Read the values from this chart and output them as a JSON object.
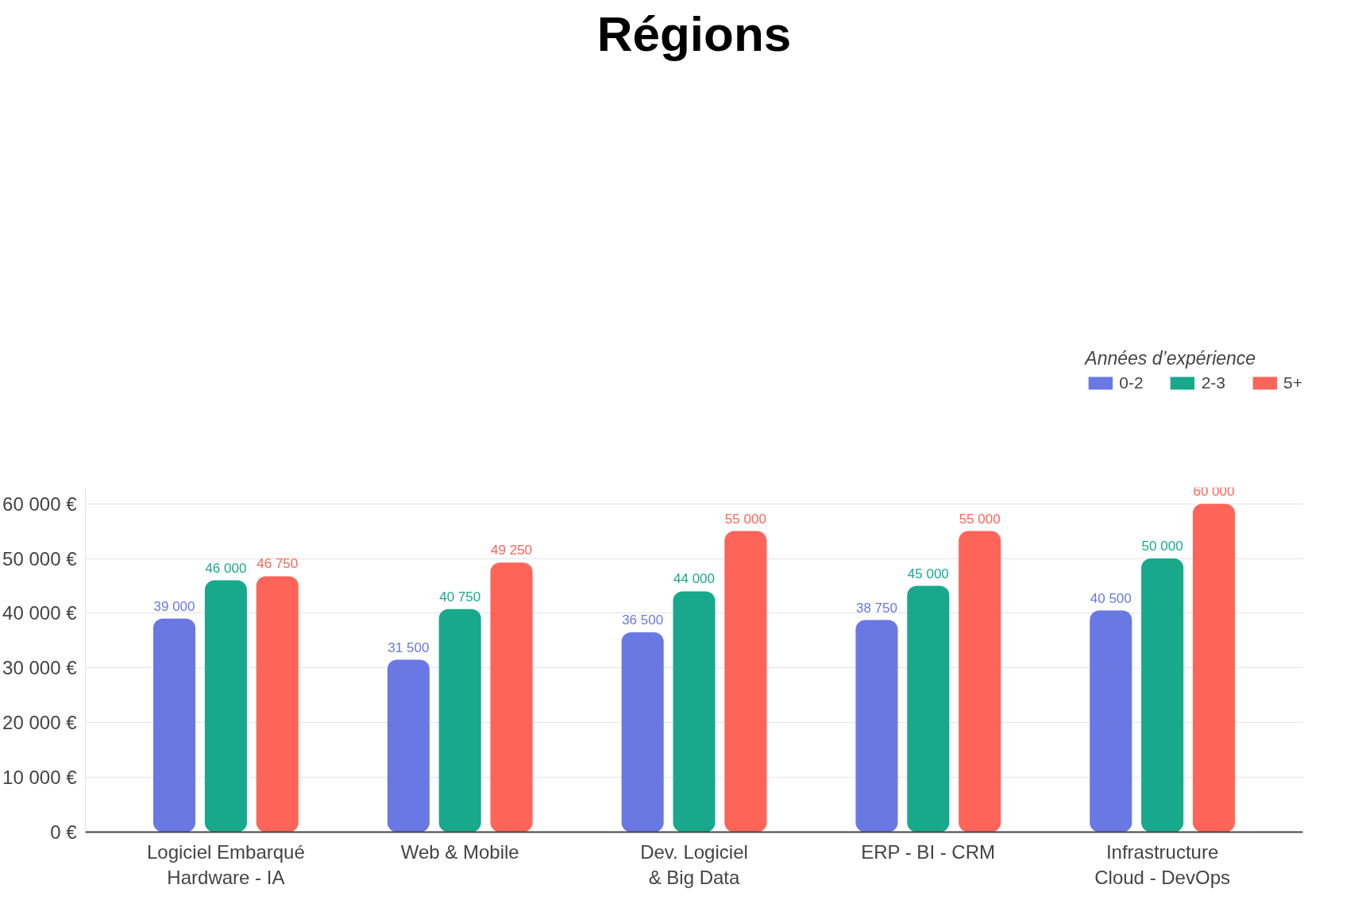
{
  "chart_data": {
    "type": "bar",
    "title": "Régions",
    "legend_title": "Années d’expérience",
    "categories": [
      "Logiciel Embarqué\nHardware - IA",
      "Web & Mobile",
      "Dev. Logiciel\n& Big Data",
      "ERP - BI - CRM",
      "Infrastructure\nCloud - DevOps"
    ],
    "series": [
      {
        "name": "0-2",
        "color": "#6a78e4",
        "values": [
          39000,
          31500,
          36500,
          38750,
          40500
        ]
      },
      {
        "name": "2-3",
        "color": "#18a98c",
        "values": [
          46000,
          40750,
          44000,
          45000,
          50000
        ]
      },
      {
        "name": "5+",
        "color": "#ff6458",
        "values": [
          46750,
          49250,
          55000,
          55000,
          60000
        ]
      }
    ],
    "ylim": [
      0,
      63000
    ],
    "yticks": [
      {
        "value": 0,
        "label": "0 €"
      },
      {
        "value": 10000,
        "label": "10 000 €"
      },
      {
        "value": 20000,
        "label": "20 000 €"
      },
      {
        "value": 30000,
        "label": "30 000 €"
      },
      {
        "value": 40000,
        "label": "40 000 €"
      },
      {
        "value": 50000,
        "label": "50 000 €"
      },
      {
        "value": 60000,
        "label": "60 000 €"
      }
    ],
    "grid": "y",
    "legend": "top right",
    "data_labels": true
  }
}
